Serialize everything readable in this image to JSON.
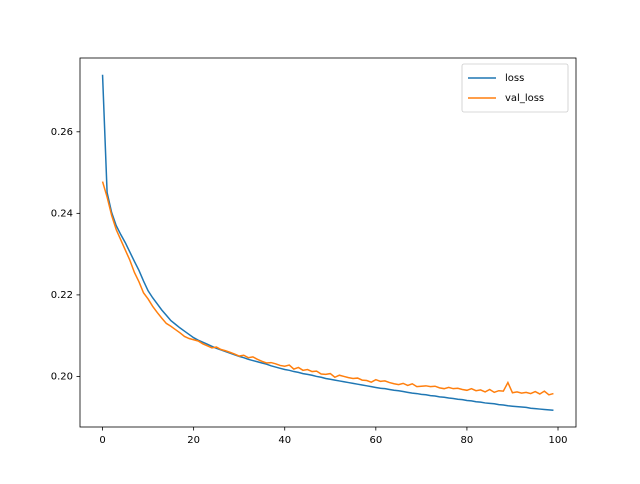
{
  "chart_data": {
    "type": "line",
    "x": [
      0,
      1,
      2,
      3,
      4,
      5,
      6,
      7,
      8,
      9,
      10,
      11,
      12,
      13,
      14,
      15,
      16,
      17,
      18,
      19,
      20,
      21,
      22,
      23,
      24,
      25,
      26,
      27,
      28,
      29,
      30,
      31,
      32,
      33,
      34,
      35,
      36,
      37,
      38,
      39,
      40,
      41,
      42,
      43,
      44,
      45,
      46,
      47,
      48,
      49,
      50,
      51,
      52,
      53,
      54,
      55,
      56,
      57,
      58,
      59,
      60,
      61,
      62,
      63,
      64,
      65,
      66,
      67,
      68,
      69,
      70,
      71,
      72,
      73,
      74,
      75,
      76,
      77,
      78,
      79,
      80,
      81,
      82,
      83,
      84,
      85,
      86,
      87,
      88,
      89,
      90,
      91,
      92,
      93,
      94,
      95,
      96,
      97,
      98,
      99
    ],
    "series": [
      {
        "name": "loss",
        "color": "#1f77b4",
        "values": [
          0.274,
          0.2451,
          0.2402,
          0.237,
          0.2348,
          0.2328,
          0.2305,
          0.2282,
          0.226,
          0.2234,
          0.221,
          0.2193,
          0.2178,
          0.2163,
          0.215,
          0.2137,
          0.2128,
          0.2119,
          0.2111,
          0.2103,
          0.2095,
          0.2089,
          0.2084,
          0.2079,
          0.2074,
          0.2069,
          0.2065,
          0.2061,
          0.2057,
          0.2053,
          0.2049,
          0.2046,
          0.2042,
          0.2039,
          0.2036,
          0.2033,
          0.203,
          0.2026,
          0.2023,
          0.202,
          0.2017,
          0.2015,
          0.2012,
          0.201,
          0.2007,
          0.2005,
          0.2003,
          0.2,
          0.1998,
          0.1995,
          0.1993,
          0.1991,
          0.1989,
          0.1987,
          0.1985,
          0.1983,
          0.1981,
          0.1979,
          0.1977,
          0.1975,
          0.1973,
          0.1971,
          0.197,
          0.1968,
          0.1966,
          0.1965,
          0.1963,
          0.1961,
          0.1959,
          0.1958,
          0.1956,
          0.1955,
          0.1953,
          0.1952,
          0.195,
          0.1949,
          0.1947,
          0.1946,
          0.1944,
          0.1943,
          0.1941,
          0.194,
          0.1938,
          0.1937,
          0.1935,
          0.1934,
          0.1933,
          0.1931,
          0.193,
          0.1928,
          0.1927,
          0.1926,
          0.1925,
          0.1924,
          0.1922,
          0.1921,
          0.192,
          0.1919,
          0.1918,
          0.1917
        ]
      },
      {
        "name": "val_loss",
        "color": "#ff7f0e",
        "values": [
          0.2478,
          0.244,
          0.2395,
          0.236,
          0.2335,
          0.231,
          0.2285,
          0.2255,
          0.2232,
          0.2205,
          0.219,
          0.2172,
          0.2157,
          0.2143,
          0.213,
          0.2123,
          0.2115,
          0.2107,
          0.2098,
          0.2093,
          0.209,
          0.2087,
          0.208,
          0.2075,
          0.207,
          0.2072,
          0.2066,
          0.2063,
          0.2059,
          0.2055,
          0.205,
          0.2052,
          0.2046,
          0.2048,
          0.2042,
          0.2037,
          0.2033,
          0.2034,
          0.2031,
          0.2027,
          0.2025,
          0.2028,
          0.2018,
          0.2022,
          0.2015,
          0.2017,
          0.2012,
          0.2013,
          0.2006,
          0.2005,
          0.2007,
          0.1998,
          0.2003,
          0.2,
          0.1997,
          0.1995,
          0.1996,
          0.1991,
          0.199,
          0.1986,
          0.1992,
          0.1988,
          0.1989,
          0.1985,
          0.1982,
          0.198,
          0.1983,
          0.1978,
          0.1982,
          0.1975,
          0.1976,
          0.1977,
          0.1975,
          0.1976,
          0.1972,
          0.197,
          0.1973,
          0.197,
          0.1971,
          0.1968,
          0.1966,
          0.197,
          0.1965,
          0.1967,
          0.1962,
          0.1968,
          0.1961,
          0.1965,
          0.1964,
          0.1985,
          0.196,
          0.1962,
          0.1959,
          0.1961,
          0.1958,
          0.1963,
          0.1957,
          0.1964,
          0.1955,
          0.1958
        ]
      }
    ],
    "xlim": [
      -4.95,
      103.95
    ],
    "xticks": [
      0,
      20,
      40,
      60,
      80,
      100
    ],
    "ylim": [
      0.1876,
      0.2781
    ],
    "yticks": [
      {
        "value": 0.2,
        "label": "0.20"
      },
      0.22,
      0.24,
      0.26
    ],
    "legend": "upper right"
  }
}
